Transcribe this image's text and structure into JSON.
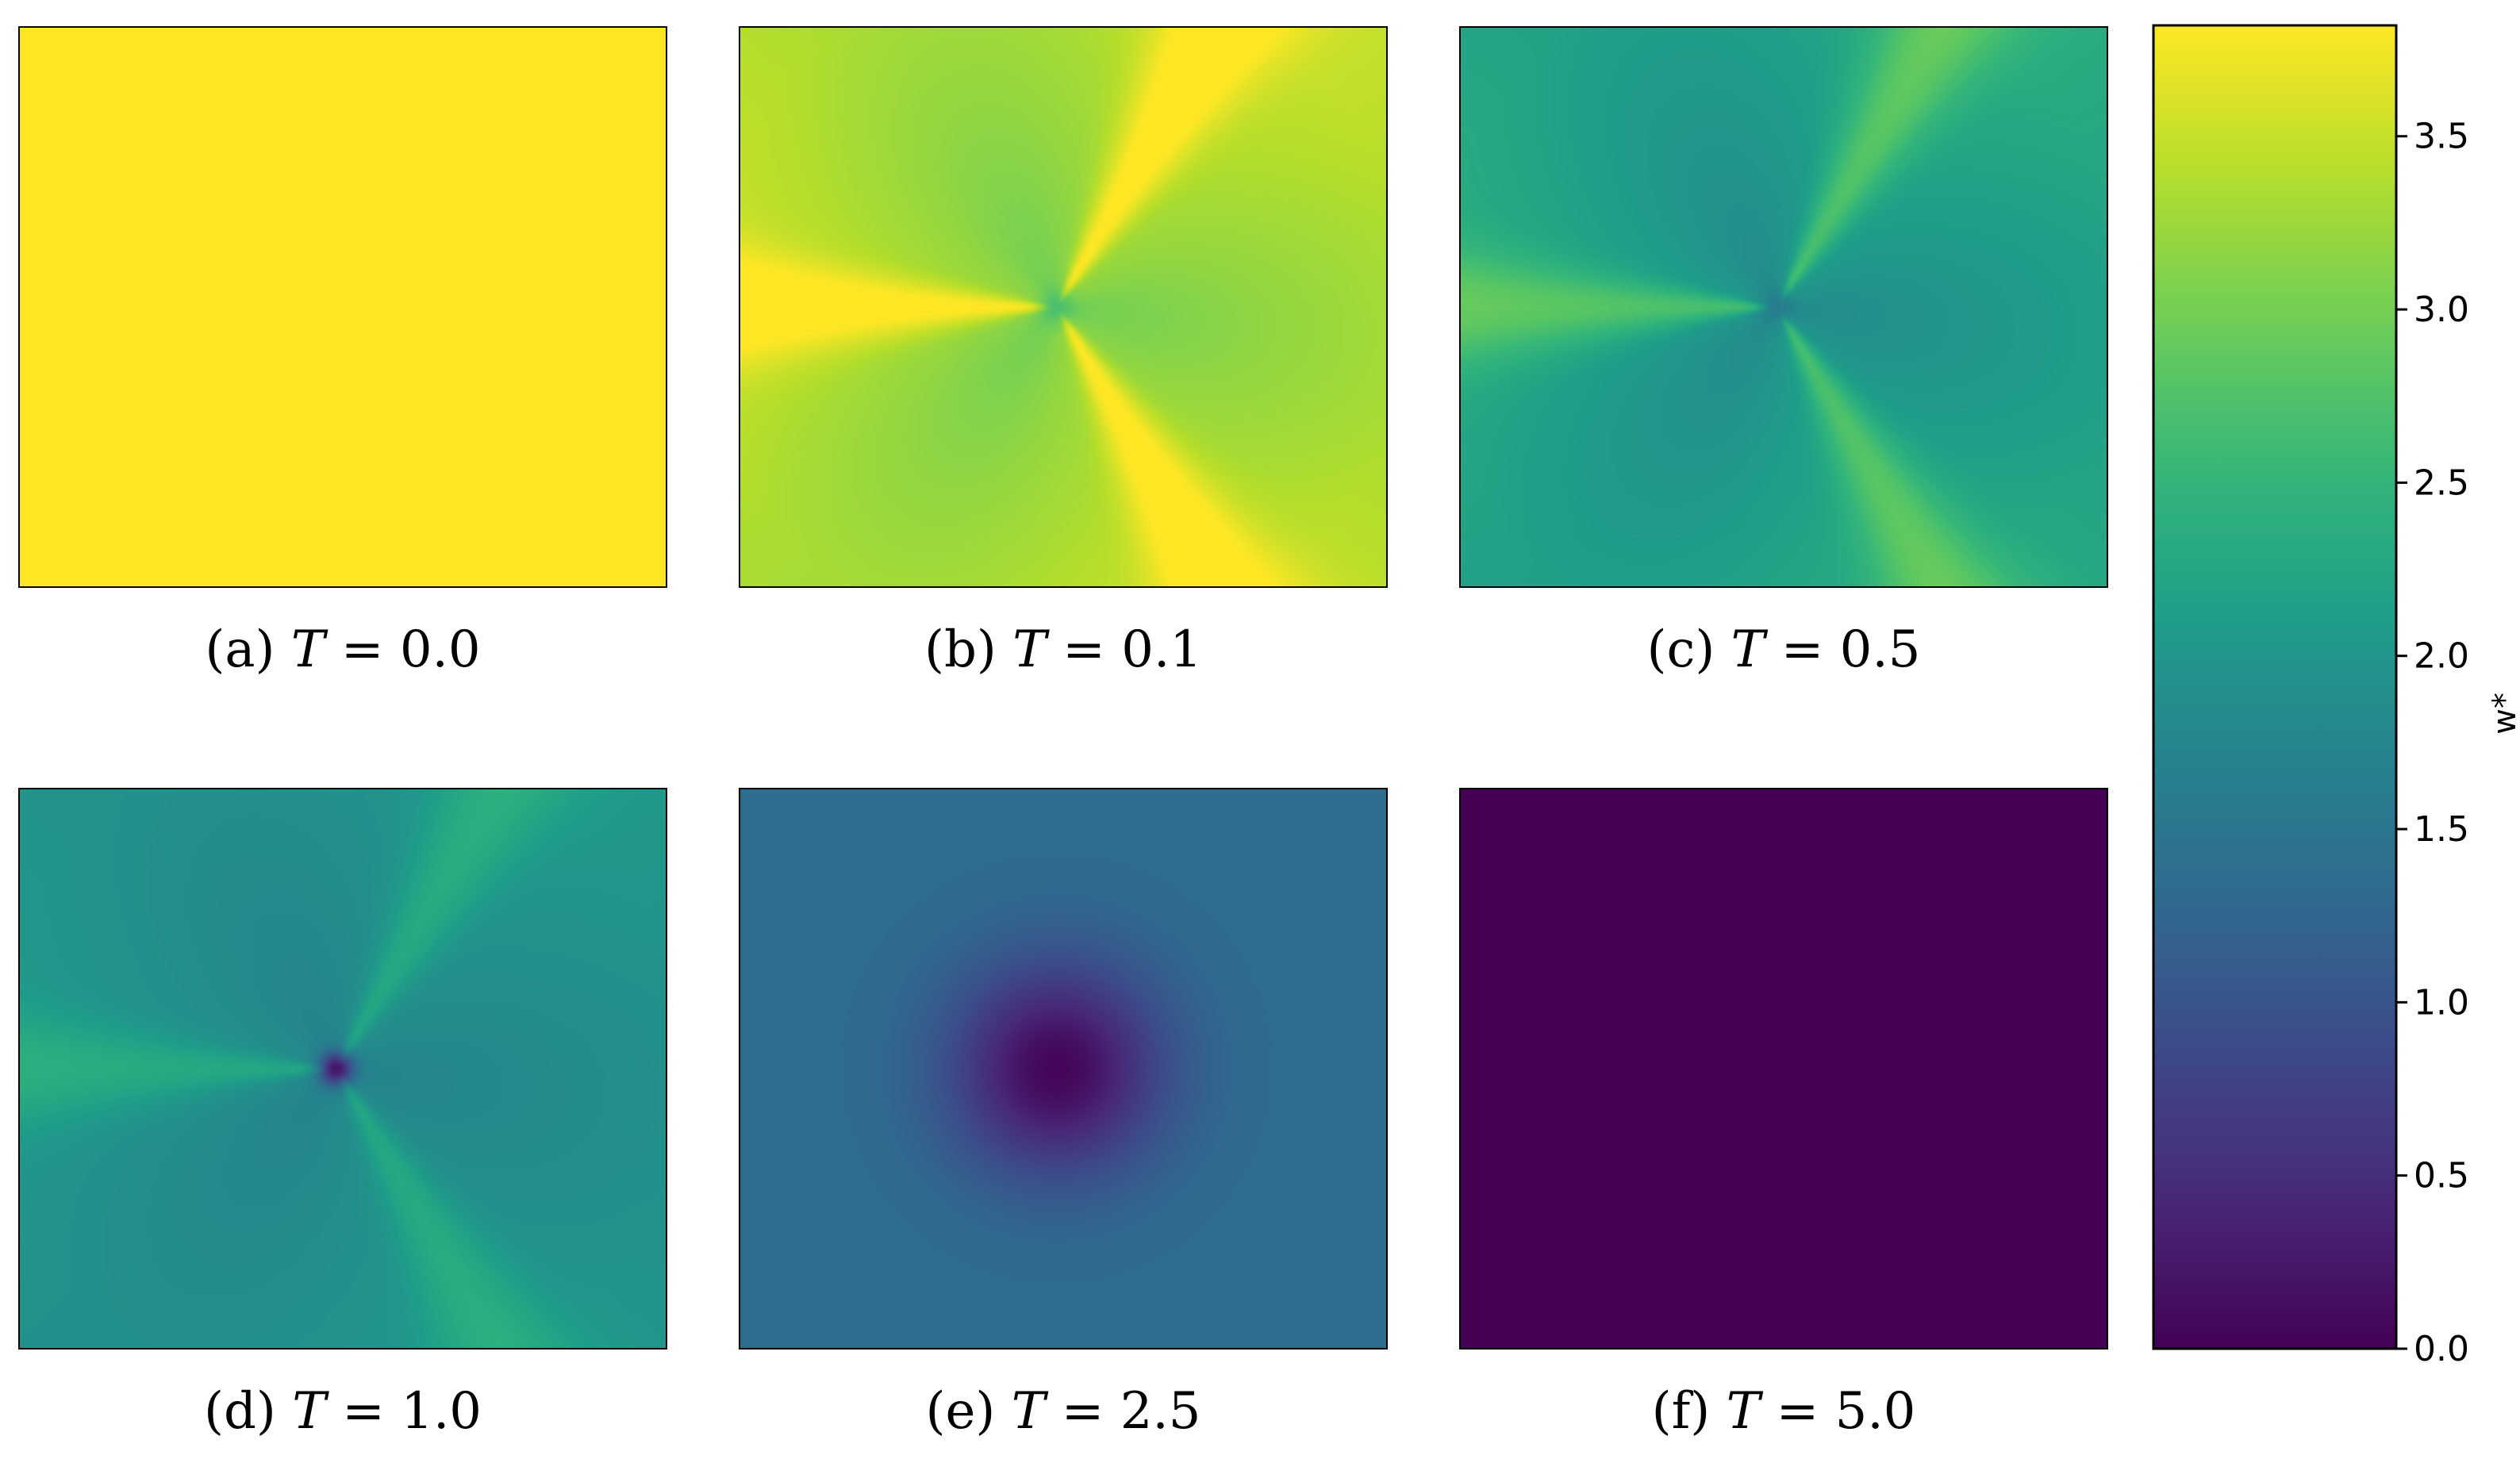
{
  "chart_data": {
    "type": "heatmap",
    "colormap": "viridis",
    "panels": [
      {
        "label": "(a)",
        "variable": "T",
        "value": "0.0",
        "pattern": "uniform",
        "level": 3.82
      },
      {
        "label": "(b)",
        "variable": "T",
        "value": "0.1",
        "pattern": "three-lobe",
        "base": 3.2,
        "amplitude": 0.55,
        "center_dip": 2.7
      },
      {
        "label": "(c)",
        "variable": "T",
        "value": "0.5",
        "pattern": "three-lobe",
        "base": 2.05,
        "amplitude": 0.55,
        "center_dip": 1.6
      },
      {
        "label": "(d)",
        "variable": "T",
        "value": "1.0",
        "pattern": "three-lobe",
        "base": 1.85,
        "amplitude": 0.35,
        "center_dip": 0.2
      },
      {
        "label": "(e)",
        "variable": "T",
        "value": "2.5",
        "pattern": "radial-dip",
        "base": 1.35,
        "center_dip": 0.05
      },
      {
        "label": "(f)",
        "variable": "T",
        "value": "5.0",
        "pattern": "uniform",
        "level": 0.0
      }
    ],
    "colorbar": {
      "label": "w*",
      "vmin": 0.0,
      "vmax": 3.82,
      "ticks": [
        "0.0",
        "0.5",
        "1.0",
        "1.5",
        "2.0",
        "2.5",
        "3.0",
        "3.5"
      ]
    }
  }
}
